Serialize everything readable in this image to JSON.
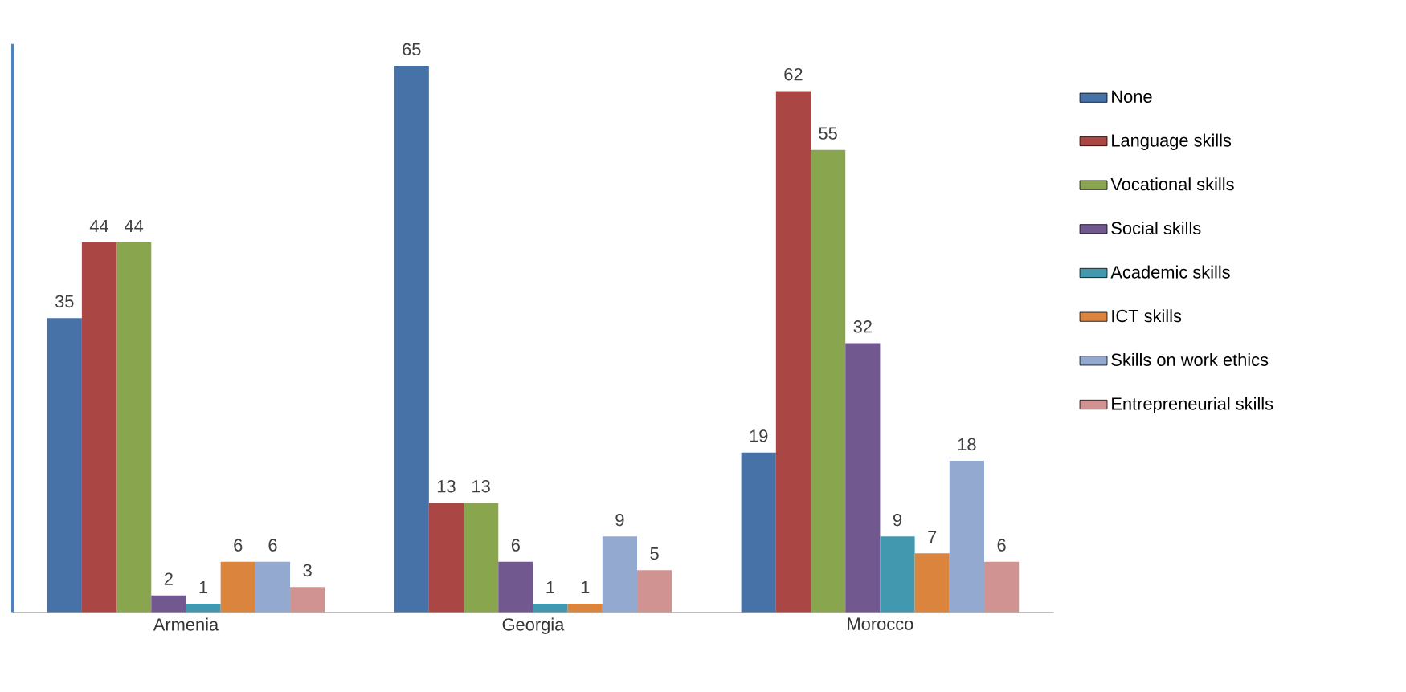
{
  "chart_data": {
    "type": "bar",
    "categories": [
      "Armenia",
      "Georgia",
      "Morocco"
    ],
    "series": [
      {
        "name": "None",
        "color": "#4672a8",
        "values": [
          35,
          65,
          19
        ]
      },
      {
        "name": "Language skills",
        "color": "#aa4643",
        "values": [
          44,
          13,
          62
        ]
      },
      {
        "name": "Vocational skills",
        "color": "#89a54e",
        "values": [
          44,
          13,
          55
        ]
      },
      {
        "name": "Social skills",
        "color": "#71588f",
        "values": [
          2,
          6,
          32
        ]
      },
      {
        "name": "Academic skills",
        "color": "#4198af",
        "values": [
          1,
          1,
          9
        ]
      },
      {
        "name": "ICT skills",
        "color": "#db843d",
        "values": [
          6,
          1,
          7
        ]
      },
      {
        "name": "Skills on work ethics",
        "color": "#93a9cf",
        "values": [
          6,
          9,
          18
        ]
      },
      {
        "name": "Entrepreneurial skills",
        "color": "#d19392",
        "values": [
          3,
          5,
          6
        ]
      }
    ],
    "data_labels": true,
    "legend": "right"
  }
}
